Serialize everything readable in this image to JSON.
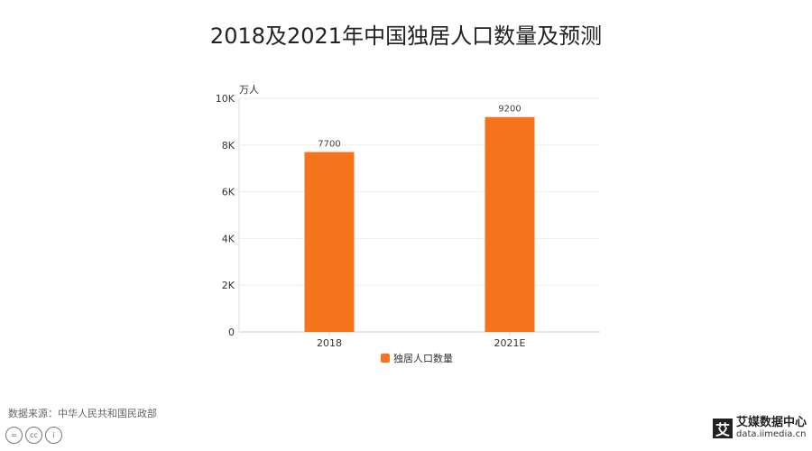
{
  "title": "2018及2021年中国独居人口数量及预测",
  "source": "数据来源：中华人民共和国民政部",
  "license_icons": [
    "equals-icon",
    "cc-icon",
    "person-icon"
  ],
  "license_labels": [
    "=",
    "cc",
    "i"
  ],
  "logo": {
    "mark": "艾",
    "name": "艾媒数据中心",
    "url": "data.iimedia.cn"
  },
  "chart_data": {
    "type": "bar",
    "categories": [
      "2018",
      "2021E"
    ],
    "series": [
      {
        "name": "独居人口数量",
        "values": [
          7700,
          9200
        ],
        "color": "#f7741e"
      }
    ],
    "ylabel": "万人",
    "ylim": [
      0,
      10000
    ],
    "yticks": [
      0,
      2000,
      4000,
      6000,
      8000,
      10000
    ],
    "ytick_labels": [
      "0",
      "2K",
      "4K",
      "6K",
      "8K",
      "10K"
    ],
    "data_labels": [
      "7700",
      "9200"
    ],
    "grid": true,
    "legend": "bottom"
  }
}
